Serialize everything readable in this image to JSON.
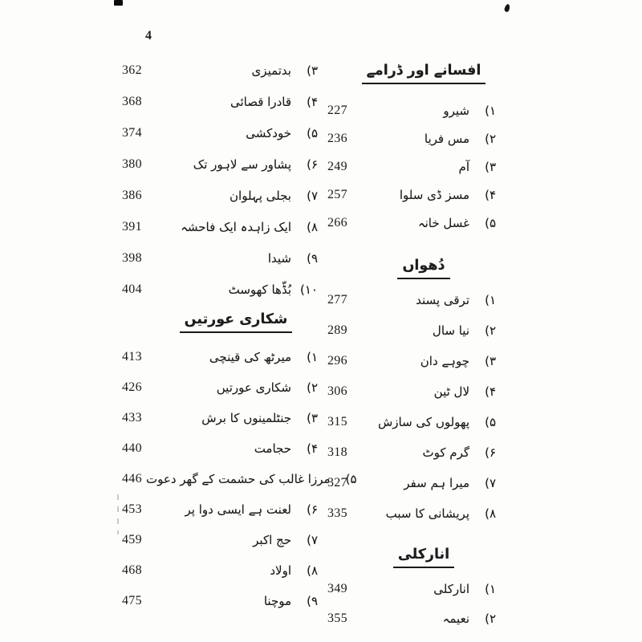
{
  "page": {
    "folio": "4"
  },
  "ink_color": "#1d1d1d",
  "paper_color": "#fdfdfb",
  "toc": {
    "left_column": {
      "section_untitled": {
        "entries": [
          {
            "num": "۳)",
            "title": "بدتمیزی",
            "page": "362"
          },
          {
            "num": "۴)",
            "title": "قادرا قصائی",
            "page": "368"
          },
          {
            "num": "۵)",
            "title": "خودکشی",
            "page": "374"
          },
          {
            "num": "۶)",
            "title": "پشاور سے لاہور تک",
            "page": "380"
          },
          {
            "num": "۷)",
            "title": "بجلی پہلوان",
            "page": "386"
          },
          {
            "num": "۸)",
            "title": "ایک زاہدہ ایک فاحشہ",
            "page": "391"
          },
          {
            "num": "۹)",
            "title": "شیدا",
            "page": "398"
          },
          {
            "num": "۱۰)",
            "title": "بُڈّھا کھوسٹ",
            "page": "404"
          }
        ]
      },
      "section_shikari": {
        "heading": "شکاری عورتیں",
        "entries": [
          {
            "num": "۱)",
            "title": "میرٹھ کی قینچی",
            "page": "413"
          },
          {
            "num": "۲)",
            "title": "شکاری عورتیں",
            "page": "426"
          },
          {
            "num": "۳)",
            "title": "جنٹلمینوں کا برش",
            "page": "433"
          },
          {
            "num": "۴)",
            "title": "حجامت",
            "page": "440"
          },
          {
            "num": "۵)",
            "title": "مرزا غالب کی حشمت کے گھر دعوت",
            "page": "446"
          },
          {
            "num": "۶)",
            "title": "لعنت ہے ایسی دوا پر",
            "page": "453"
          },
          {
            "num": "۷)",
            "title": "حج اکبر",
            "page": "459"
          },
          {
            "num": "۸)",
            "title": "اولاد",
            "page": "468"
          },
          {
            "num": "۹)",
            "title": "موچنا",
            "page": "475"
          }
        ]
      }
    },
    "right_column": {
      "section_afsanay": {
        "heading": "افسانے اور ڈرامے",
        "entries": [
          {
            "num": "۱)",
            "title": "شیرو",
            "page": "227"
          },
          {
            "num": "۲)",
            "title": "مس فریا",
            "page": "236"
          },
          {
            "num": "۳)",
            "title": "آم",
            "page": "249"
          },
          {
            "num": "۴)",
            "title": "مسز ڈی سلوا",
            "page": "257"
          },
          {
            "num": "۵)",
            "title": "غسل خانہ",
            "page": "266"
          }
        ]
      },
      "section_dhuan": {
        "heading": "دُھواں",
        "entries": [
          {
            "num": "۱)",
            "title": "ترقی پسند",
            "page": "277"
          },
          {
            "num": "۲)",
            "title": "نیا سال",
            "page": "289"
          },
          {
            "num": "۳)",
            "title": "چوہے دان",
            "page": "296"
          },
          {
            "num": "۴)",
            "title": "لال ٹین",
            "page": "306"
          },
          {
            "num": "۵)",
            "title": "پھولوں کی سازش",
            "page": "315"
          },
          {
            "num": "۶)",
            "title": "گرم کوٹ",
            "page": "318"
          },
          {
            "num": "۷)",
            "title": "میرا ہم سفر",
            "page": "327"
          },
          {
            "num": "۸)",
            "title": "پریشانی کا سبب",
            "page": "335"
          }
        ]
      },
      "section_anarkali": {
        "heading": "انارکلی",
        "entries": [
          {
            "num": "۱)",
            "title": "انارکلی",
            "page": "349"
          },
          {
            "num": "۲)",
            "title": "نعیمہ",
            "page": "355"
          }
        ]
      }
    }
  }
}
